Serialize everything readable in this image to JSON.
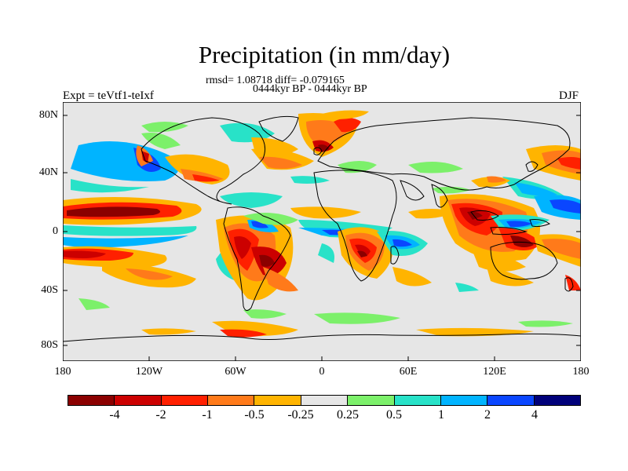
{
  "title": "Precipitation (in mm/day)",
  "stats_line": "rmsd= 1.08718 diff= -0.079165",
  "period_line": "0444kyr BP - 0444kyr BP",
  "experiment_label": "Expt = teVtf1-teIxf",
  "season_label": "DJF",
  "lat_labels": [
    "80N",
    "40N",
    "0",
    "40S",
    "80S"
  ],
  "lon_labels": [
    "180",
    "120W",
    "60W",
    "0",
    "60E",
    "120E",
    "180"
  ],
  "colorbar": {
    "labels": [
      "-4",
      "-2",
      "-1",
      "-0.5",
      "-0.25",
      "0.25",
      "0.5",
      "1",
      "2",
      "4"
    ],
    "colors": [
      "#8b0000",
      "#cc0000",
      "#ff2000",
      "#ff7a1a",
      "#ffb400",
      "#e6e6e6",
      "#7cf06a",
      "#28e2c8",
      "#00b4ff",
      "#0a46ff",
      "#00007a"
    ]
  }
}
